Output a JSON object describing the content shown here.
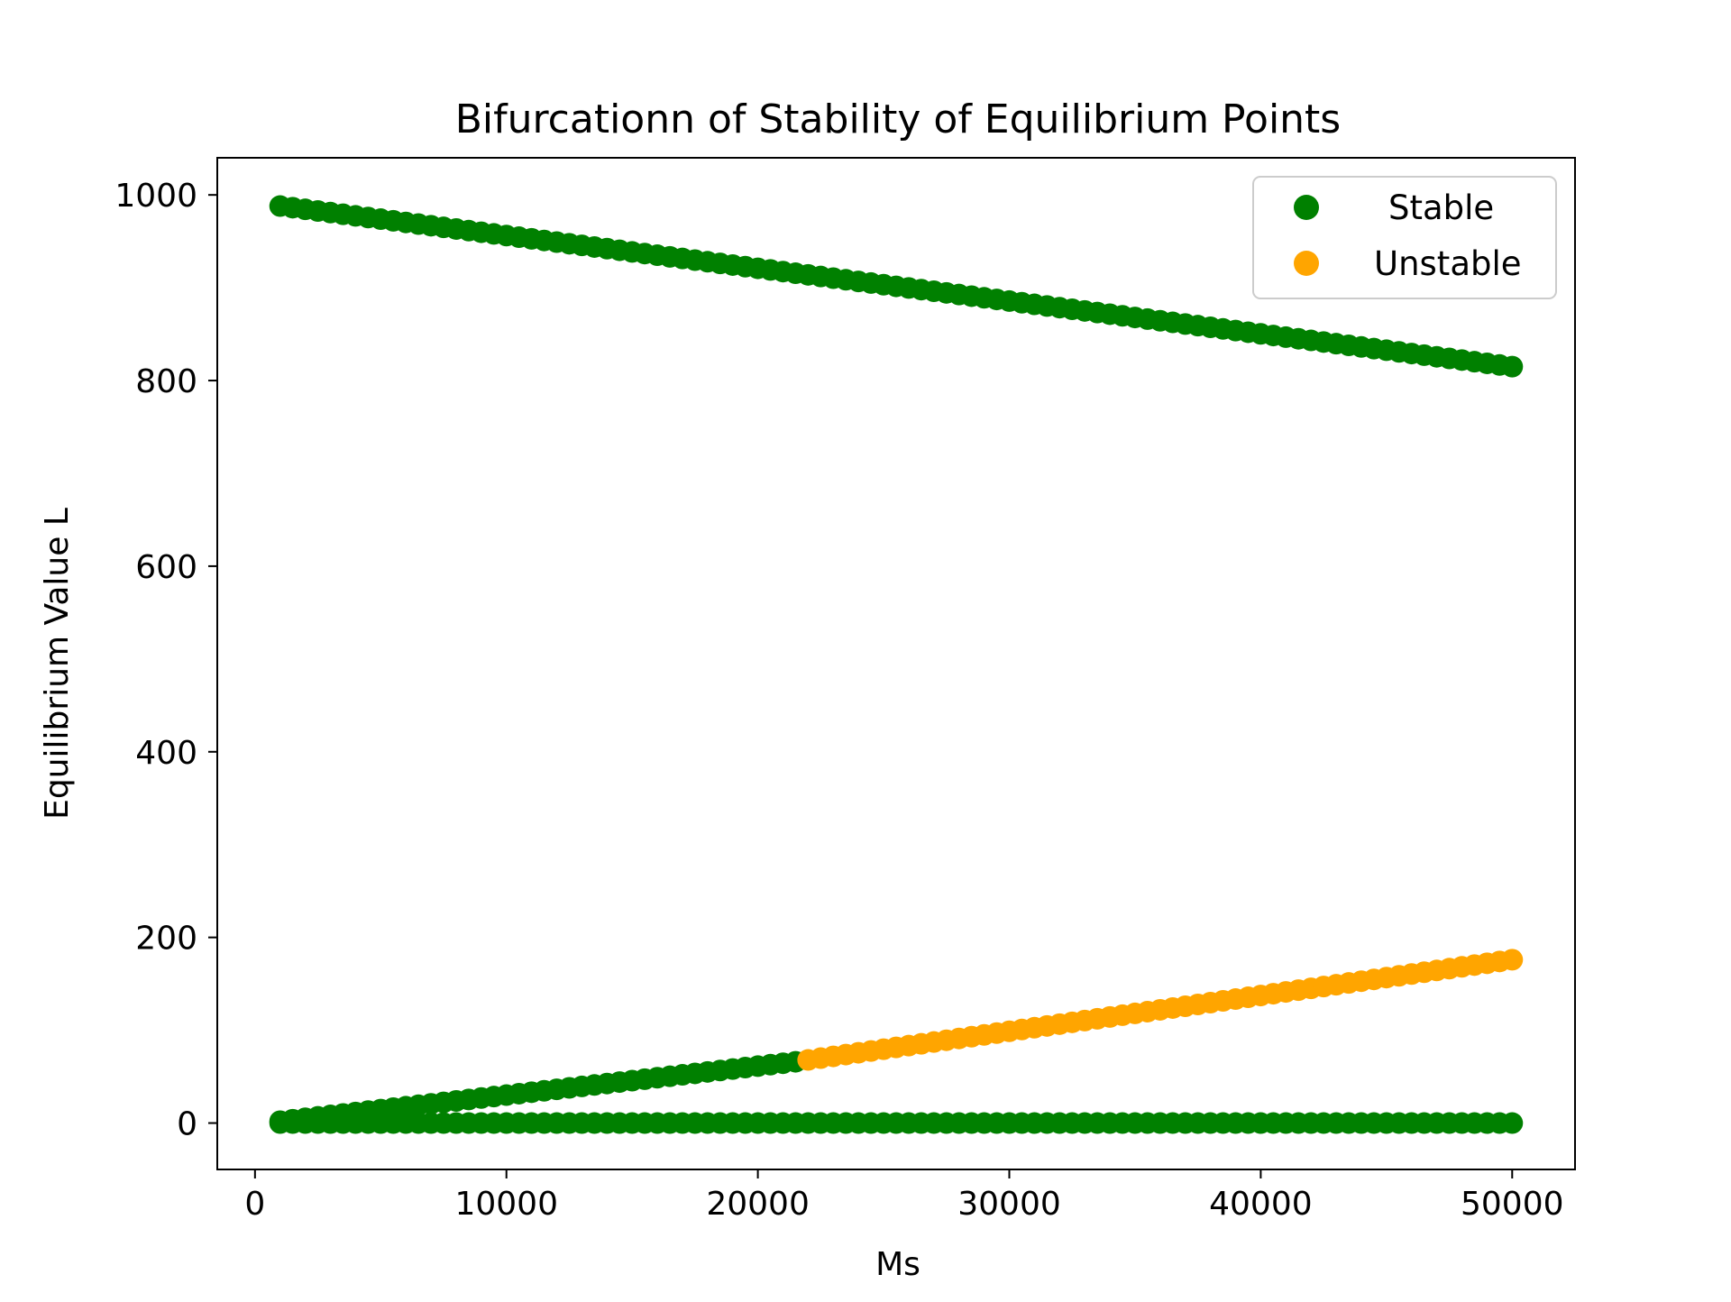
{
  "chart_data": {
    "type": "scatter",
    "title": "Bifurcationn of Stability of Equilibrium Points",
    "xlabel": "Ms",
    "ylabel": "Equilibrium Value L",
    "xlim": [
      -1500,
      52500
    ],
    "ylim": [
      -50,
      1040
    ],
    "xticks": [
      0,
      10000,
      20000,
      30000,
      40000,
      50000
    ],
    "yticks": [
      0,
      200,
      400,
      600,
      800,
      1000
    ],
    "grid": false,
    "legend_position": "upper right",
    "colors": {
      "stable": "#008000",
      "unstable": "#ffa500"
    },
    "series": [
      {
        "name": "Stable",
        "color": "#008000",
        "segments": [
          {
            "x_start": 1000,
            "x_end": 50000,
            "y_start": 988,
            "y_end": 815
          },
          {
            "x_start": 1000,
            "x_end": 21500,
            "y_start": 2,
            "y_end": 66
          },
          {
            "x_start": 1000,
            "x_end": 50000,
            "y_start": 0,
            "y_end": 0
          }
        ]
      },
      {
        "name": "Unstable",
        "color": "#ffa500",
        "segments": [
          {
            "x_start": 22000,
            "x_end": 50000,
            "y_start": 68,
            "y_end": 176
          }
        ]
      }
    ]
  }
}
